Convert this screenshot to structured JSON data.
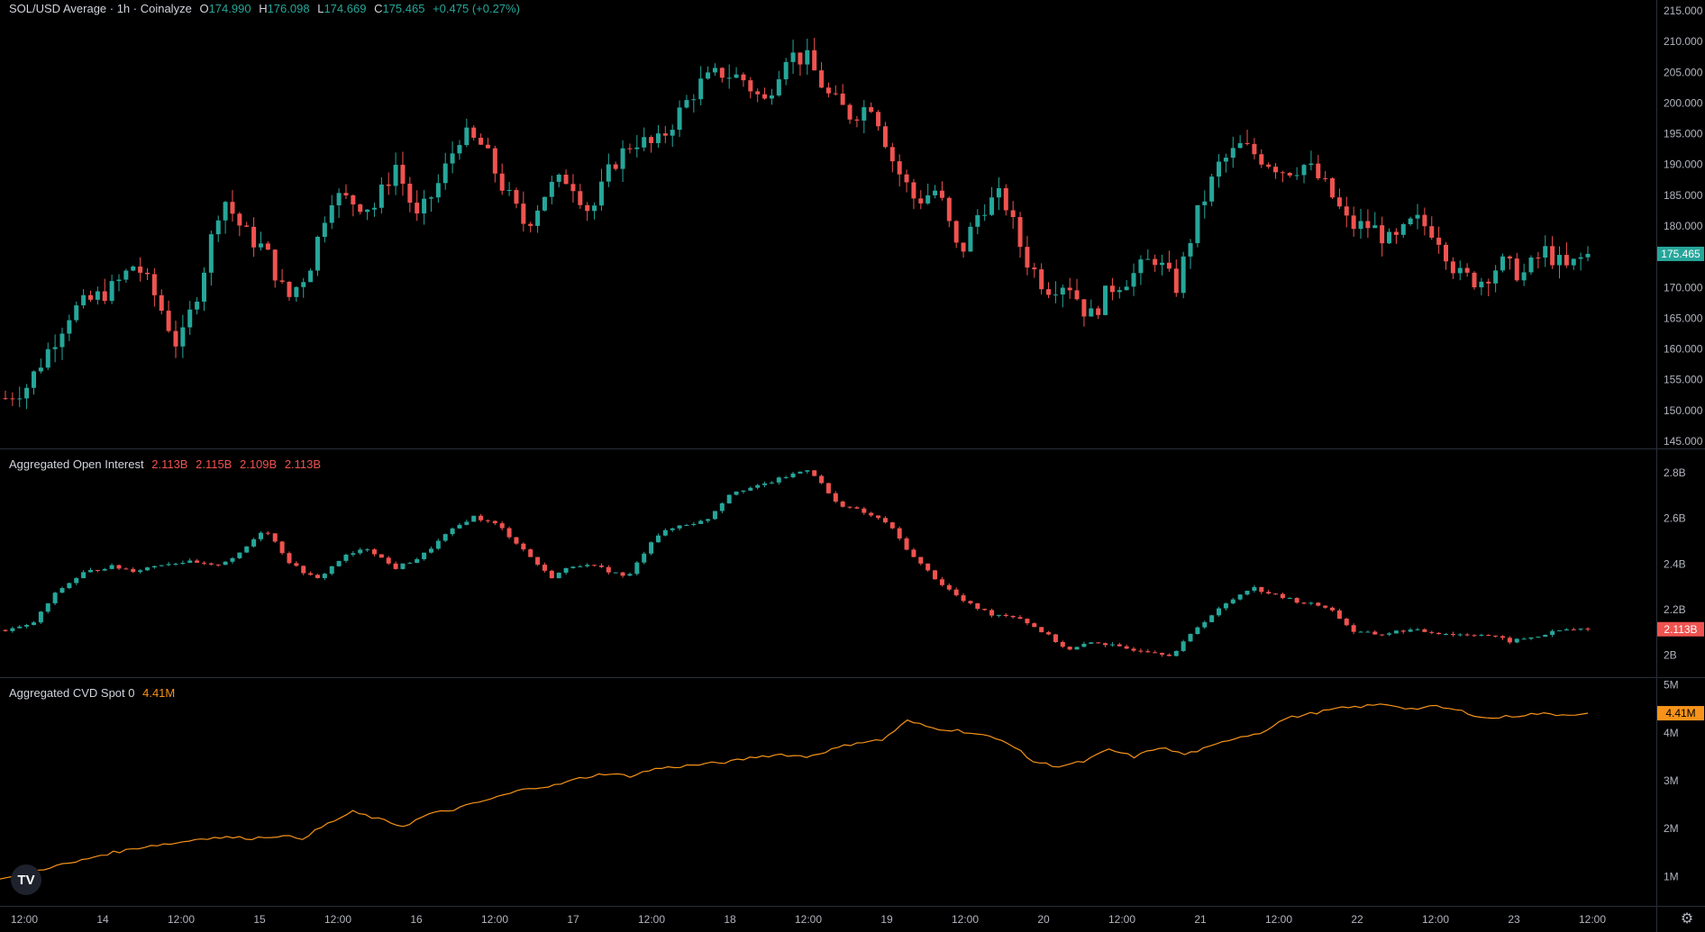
{
  "price_legend": {
    "symbol": "SOL/USD Average · 1h · Coinalyze",
    "o_label": "O",
    "o": "174.990",
    "h_label": "H",
    "h": "176.098",
    "l_label": "L",
    "l": "174.669",
    "c_label": "C",
    "c": "175.465",
    "chg": "+0.475 (+0.27%)"
  },
  "oi_legend": {
    "title": "Aggregated Open Interest",
    "o": "2.113B",
    "h": "2.115B",
    "l": "2.109B",
    "c": "2.113B"
  },
  "cvd_legend": {
    "title": "Aggregated CVD Spot 0",
    "value": "4.41M"
  },
  "logo": "TV",
  "colors": {
    "up": "#26a69a",
    "down": "#ef5350",
    "cvd": "#f7931a",
    "bg": "#000000",
    "grid_line": "#2a2e39"
  },
  "chart_data": [
    {
      "type": "candlestick",
      "title": "SOL/USD Average · 1h · Coinalyze",
      "y_ticks": [
        "215.000",
        "210.000",
        "205.000",
        "200.000",
        "195.000",
        "190.000",
        "185.000",
        "180.000",
        "175.000",
        "170.000",
        "165.000",
        "160.000",
        "155.000",
        "150.000",
        "145.000"
      ],
      "ylim": [
        145,
        215
      ],
      "last_value_label": "175.465",
      "waypoints_close": [
        152,
        154,
        160,
        166,
        168,
        170,
        174,
        168,
        160,
        171,
        185,
        179,
        176,
        168,
        173,
        185,
        184,
        183,
        190,
        181,
        187,
        195,
        193,
        186,
        180,
        186,
        188,
        182,
        190,
        194,
        193,
        198,
        203,
        205,
        204,
        200,
        208,
        207,
        201,
        198,
        200,
        190,
        184,
        186,
        175,
        183,
        185,
        175,
        170,
        171,
        165,
        170,
        172,
        175,
        170,
        182,
        190,
        193,
        191,
        189,
        190,
        186,
        180,
        180,
        177,
        181,
        179,
        172,
        171,
        174,
        172,
        176,
        173,
        175.465
      ]
    },
    {
      "type": "candlestick",
      "title": "Aggregated Open Interest",
      "y_ticks": [
        "2.8B",
        "2.6B",
        "2.4B",
        "2.2B",
        "2B"
      ],
      "ylim": [
        1.93,
        2.88
      ],
      "last_value_label": "2.113B",
      "waypoints_close": [
        2.11,
        2.13,
        2.28,
        2.36,
        2.39,
        2.37,
        2.4,
        2.41,
        2.39,
        2.44,
        2.56,
        2.4,
        2.33,
        2.43,
        2.47,
        2.38,
        2.43,
        2.53,
        2.61,
        2.57,
        2.46,
        2.34,
        2.4,
        2.38,
        2.34,
        2.52,
        2.57,
        2.59,
        2.72,
        2.74,
        2.78,
        2.82,
        2.67,
        2.63,
        2.58,
        2.43,
        2.32,
        2.23,
        2.18,
        2.17,
        2.1,
        2.02,
        2.06,
        2.03,
        2.02,
        2.0,
        2.13,
        2.22,
        2.3,
        2.26,
        2.23,
        2.21,
        2.1,
        2.09,
        2.11,
        2.1,
        2.09,
        2.09,
        2.06,
        2.08,
        2.11,
        2.113
      ]
    },
    {
      "type": "line",
      "title": "Aggregated CVD Spot 0",
      "y_ticks": [
        "5M",
        "4M",
        "3M",
        "2M",
        "1M"
      ],
      "ylim": [
        0.5,
        5.05
      ],
      "last_value_label": "4.41M",
      "values": [
        0.95,
        1.05,
        1.2,
        1.3,
        1.45,
        1.55,
        1.65,
        1.7,
        1.8,
        1.82,
        1.8,
        1.85,
        1.8,
        2.1,
        2.35,
        2.2,
        2.05,
        2.3,
        2.4,
        2.55,
        2.7,
        2.85,
        2.9,
        3.05,
        3.15,
        3.1,
        3.25,
        3.3,
        3.35,
        3.4,
        3.5,
        3.55,
        3.5,
        3.65,
        3.8,
        3.85,
        4.25,
        4.1,
        4.05,
        3.95,
        3.8,
        3.4,
        3.3,
        3.4,
        3.65,
        3.5,
        3.7,
        3.55,
        3.7,
        3.9,
        4.0,
        4.3,
        4.4,
        4.5,
        4.55,
        4.6,
        4.5,
        4.55,
        4.45,
        4.3,
        4.35,
        4.4,
        4.38,
        4.41
      ]
    }
  ],
  "x_axis": {
    "ticks": [
      "12:00",
      "14",
      "12:00",
      "15",
      "12:00",
      "16",
      "12:00",
      "17",
      "12:00",
      "18",
      "12:00",
      "19",
      "12:00",
      "20",
      "12:00",
      "21",
      "12:00",
      "22",
      "12:00",
      "23",
      "12:00"
    ]
  }
}
